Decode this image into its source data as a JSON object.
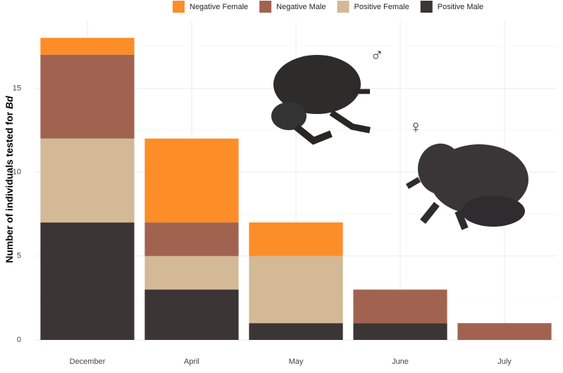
{
  "chart_data": {
    "type": "stacked_bar",
    "y_label": "Number of individuals tested for",
    "y_label_italic": "Bd",
    "categories": [
      "December",
      "April",
      "May",
      "June",
      "July"
    ],
    "series": [
      {
        "name": "Negative Female",
        "color": "#fd8d27",
        "values": [
          1,
          5,
          2,
          0,
          0
        ]
      },
      {
        "name": "Negative Male",
        "color": "#a16350",
        "values": [
          5,
          2,
          0,
          2,
          1
        ]
      },
      {
        "name": "Positive Female",
        "color": "#d3b996",
        "values": [
          5,
          2,
          4,
          0,
          0
        ]
      },
      {
        "name": "Positive Male",
        "color": "#3b3536",
        "values": [
          7,
          3,
          1,
          1,
          0
        ]
      }
    ],
    "ylim": [
      0,
      19
    ],
    "yticks": [
      0,
      5,
      10,
      15
    ],
    "grid": true,
    "legend": "top",
    "annotations": [
      "♂",
      "♀"
    ]
  }
}
